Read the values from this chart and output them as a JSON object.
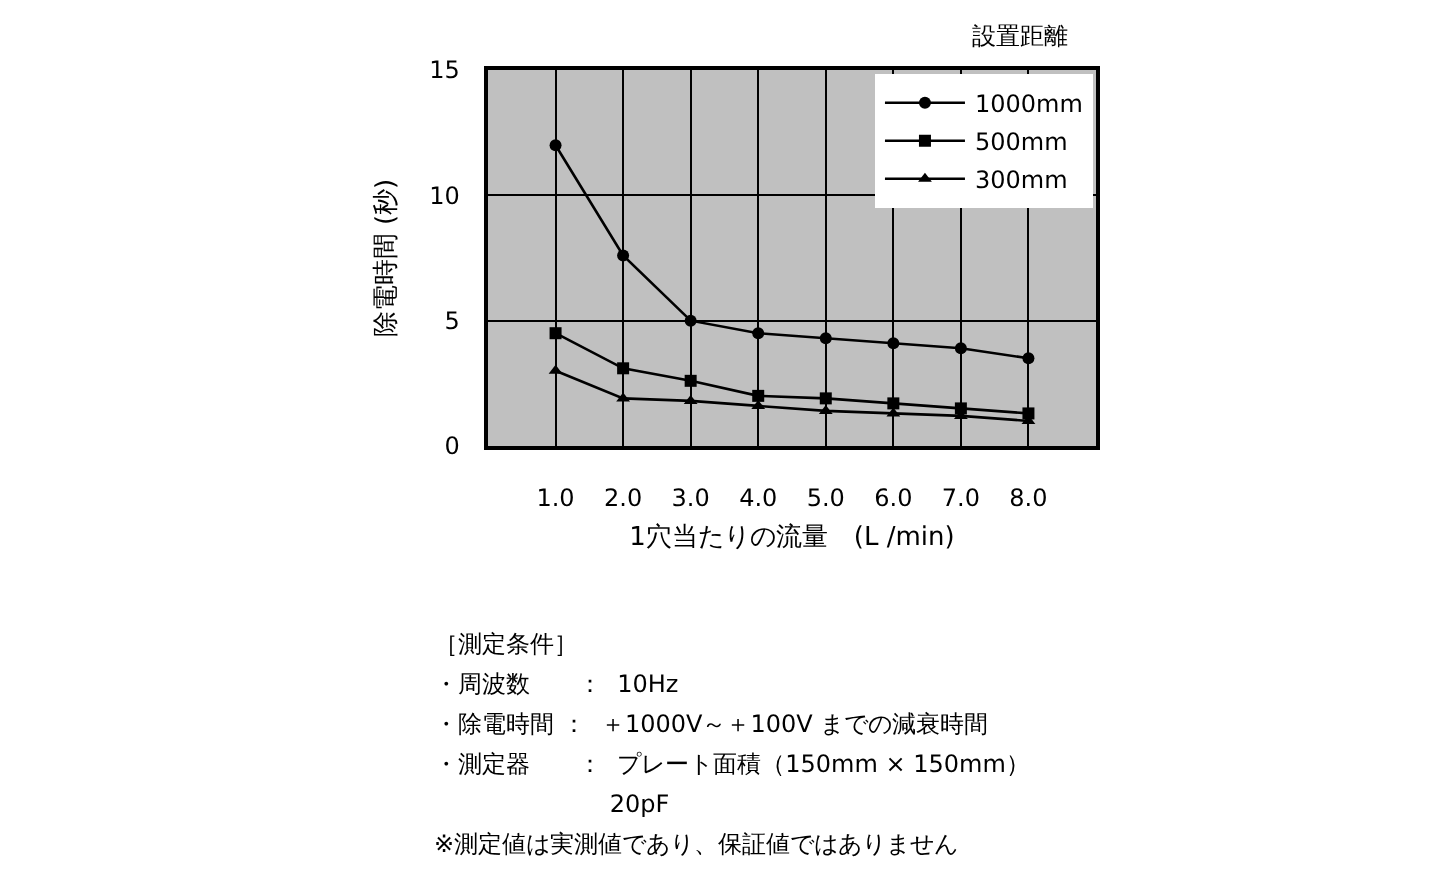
{
  "chart_data": {
    "type": "line",
    "xlabel": "1穴当たりの流量　(L /min)",
    "ylabel": "除電時間 (秒)",
    "legend_title": "設置距離",
    "x": [
      1,
      2,
      3,
      4,
      5,
      6,
      7,
      8
    ],
    "xlim": [
      0,
      9
    ],
    "xticks": [
      {
        "value": 1,
        "label": "1.0"
      },
      {
        "value": 2,
        "label": "2.0"
      },
      {
        "value": 3,
        "label": "3.0"
      },
      {
        "value": 4,
        "label": "4.0"
      },
      {
        "value": 5,
        "label": "5.0"
      },
      {
        "value": 6,
        "label": "6.0"
      },
      {
        "value": 7,
        "label": "7.0"
      },
      {
        "value": 8,
        "label": "8.0"
      }
    ],
    "ylim": [
      0,
      15
    ],
    "yticks": [
      0,
      5,
      10,
      15
    ],
    "grid": true,
    "legend": "top right",
    "line_style": "solid",
    "series": [
      {
        "name": "1000mm",
        "color": "#000000",
        "marker": "circle",
        "values": [
          12.0,
          7.6,
          5.0,
          4.5,
          4.3,
          4.1,
          3.9,
          3.5
        ]
      },
      {
        "name": "500mm",
        "color": "#000000",
        "marker": "square",
        "values": [
          4.5,
          3.1,
          2.6,
          2.0,
          1.9,
          1.7,
          1.5,
          1.3
        ]
      },
      {
        "name": "300mm",
        "color": "#000000",
        "marker": "triangle",
        "values": [
          3.0,
          1.9,
          1.8,
          1.6,
          1.4,
          1.3,
          1.2,
          1.0
        ]
      }
    ],
    "annotations": [
      "［測定条件］",
      "・周波数　　：  10Hz",
      "・除電時間 ：  ＋1000V～＋100V までの減衰時間",
      "・測定器　　：  プレート面積（150mm × 150mm）",
      "　　　　　　　 20pF",
      "※測定値は実測値であり、保証値ではありません"
    ]
  }
}
